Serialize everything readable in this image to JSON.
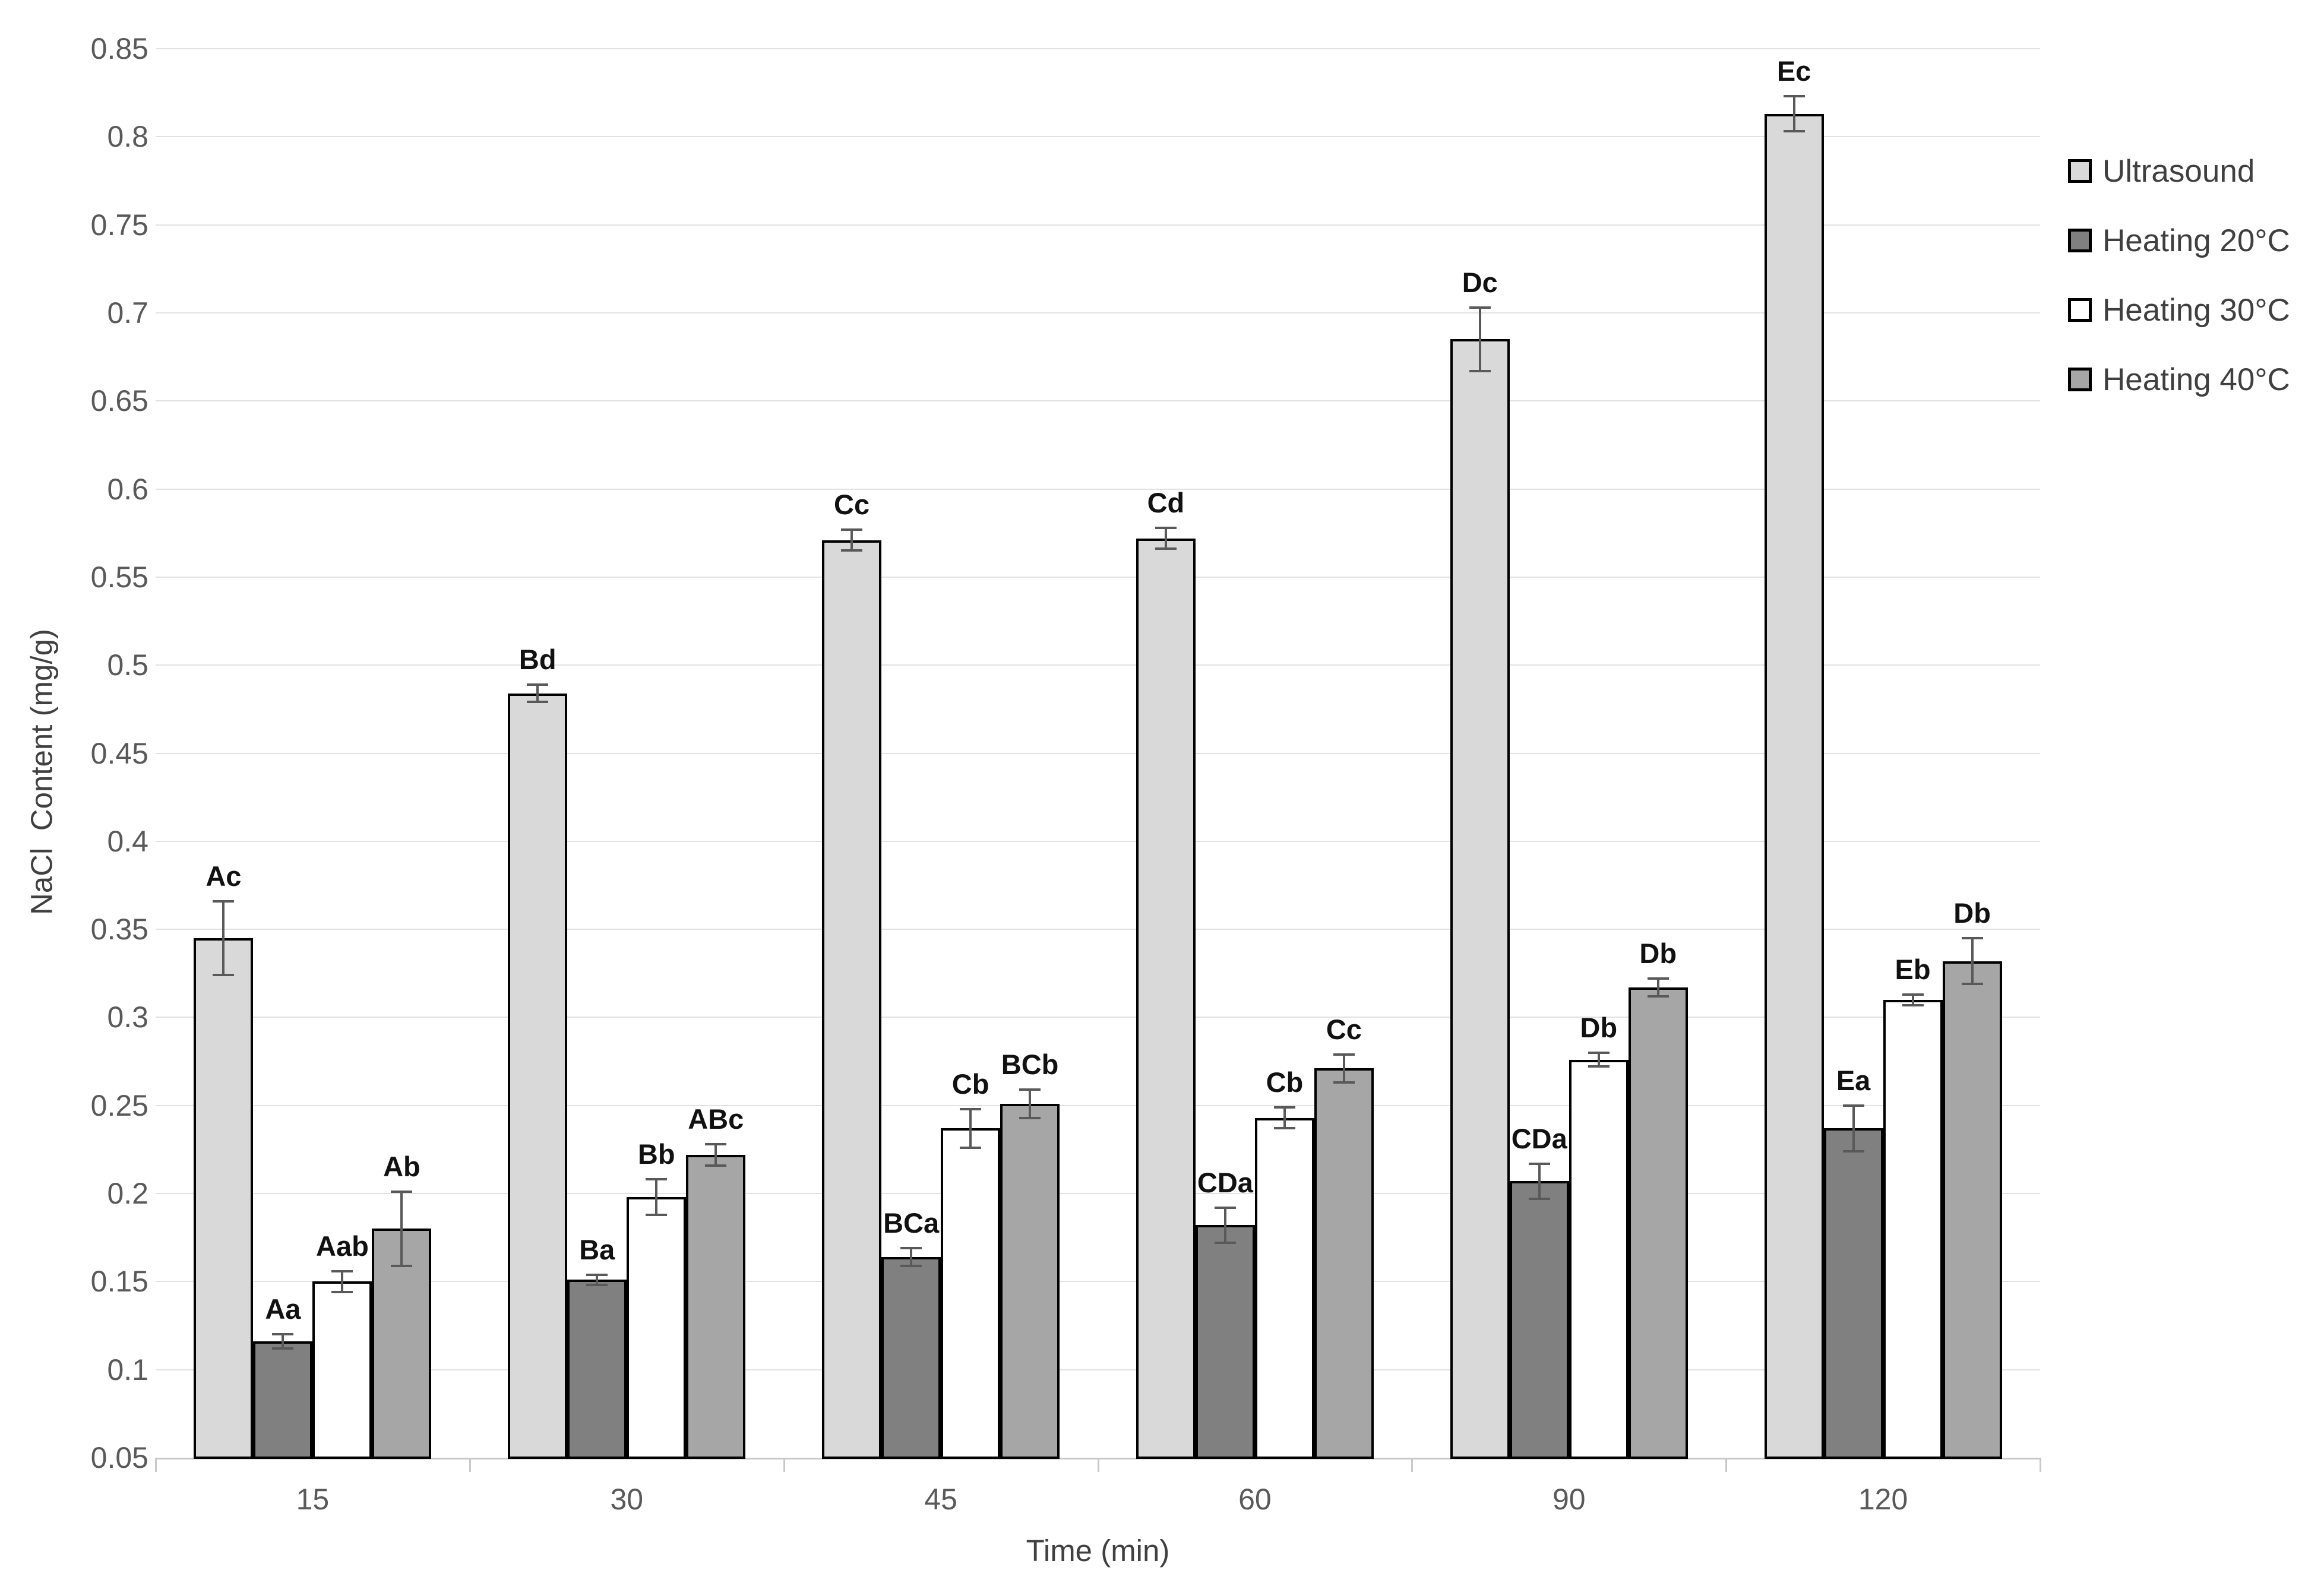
{
  "chart_data": {
    "type": "bar",
    "title": "",
    "xlabel": "Time (min)",
    "ylabel": "NaCl  Content (mg/g)",
    "categories": [
      "15",
      "30",
      "45",
      "60",
      "90",
      "120"
    ],
    "y_axis": {
      "min": 0.05,
      "max": 0.85,
      "tick_step": 0.05,
      "tick_labels": [
        "0.85",
        "0.8",
        "0.75",
        "0.7",
        "0.65",
        "0.6",
        "0.55",
        "0.5",
        "0.45",
        "0.4",
        "0.35",
        "0.3",
        "0.25",
        "0.2",
        "0.15",
        "0.1",
        "0.05"
      ]
    },
    "grid": true,
    "legend_position": "right",
    "series": [
      {
        "name": "Ultrasound",
        "color": "#d9d9d9",
        "values": [
          0.345,
          0.484,
          0.571,
          0.572,
          0.685,
          0.813
        ],
        "errors": [
          0.021,
          0.005,
          0.006,
          0.006,
          0.018,
          0.01
        ],
        "point_labels": [
          "Ac",
          "Bd",
          "Cc",
          "Cd",
          "Dc",
          "Ec"
        ]
      },
      {
        "name": "Heating 20°C",
        "color": "#808080",
        "values": [
          0.116,
          0.151,
          0.164,
          0.182,
          0.207,
          0.237
        ],
        "errors": [
          0.004,
          0.003,
          0.005,
          0.01,
          0.01,
          0.013
        ],
        "point_labels": [
          "Aa",
          "Ba",
          "BCa",
          "CDa",
          "CDa",
          "Ea"
        ]
      },
      {
        "name": "Heating 30°C",
        "color": "#ffffff",
        "values": [
          0.15,
          0.198,
          0.237,
          0.243,
          0.276,
          0.31
        ],
        "errors": [
          0.006,
          0.01,
          0.011,
          0.006,
          0.004,
          0.003
        ],
        "point_labels": [
          "Aab",
          "Bb",
          "Cb",
          "Cb",
          "Db",
          "Eb"
        ]
      },
      {
        "name": "Heating 40°C",
        "color": "#a6a6a6",
        "values": [
          0.18,
          0.222,
          0.251,
          0.271,
          0.317,
          0.332
        ],
        "errors": [
          0.021,
          0.006,
          0.008,
          0.008,
          0.005,
          0.013
        ],
        "point_labels": [
          "Ab",
          "ABc",
          "BCb",
          "Cc",
          "Db",
          "Db"
        ]
      }
    ],
    "colors": {
      "gridline": "#e2e2e2",
      "axis_line": "#c9c9c9",
      "error_bar": "#595959",
      "tick_text": "#595959",
      "title_text": "#404040",
      "bar_border": "#000000"
    }
  }
}
